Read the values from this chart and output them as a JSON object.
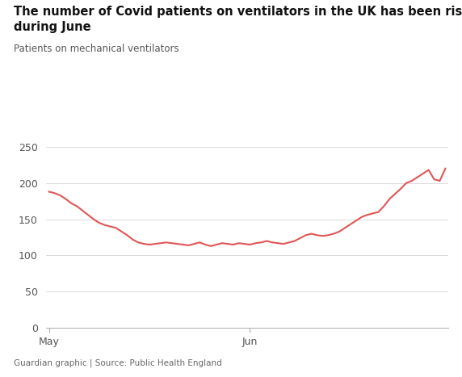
{
  "title_line1": "The number of Covid patients on ventilators in the UK has been rising",
  "title_line2": "during June",
  "ylabel": "Patients on mechanical ventilators",
  "source": "Guardian graphic | Source: Public Health England",
  "line_color": "#e05555",
  "background_color": "#ffffff",
  "ylim": [
    0,
    260
  ],
  "yticks": [
    0,
    50,
    100,
    150,
    200,
    250
  ],
  "x_tick_labels": [
    "May",
    "Jun"
  ],
  "x_tick_positions": [
    0,
    36
  ],
  "values": [
    188,
    186,
    183,
    178,
    172,
    168,
    162,
    156,
    150,
    145,
    142,
    140,
    138,
    133,
    128,
    122,
    118,
    116,
    115,
    116,
    117,
    118,
    117,
    116,
    115,
    114,
    116,
    118,
    115,
    113,
    115,
    117,
    116,
    115,
    117,
    116,
    115,
    117,
    118,
    120,
    118,
    117,
    116,
    118,
    120,
    124,
    128,
    130,
    128,
    127,
    128,
    130,
    133,
    138,
    143,
    148,
    153,
    156,
    158,
    160,
    168,
    178,
    185,
    192,
    200,
    203,
    208,
    213,
    218,
    205,
    203,
    220
  ]
}
